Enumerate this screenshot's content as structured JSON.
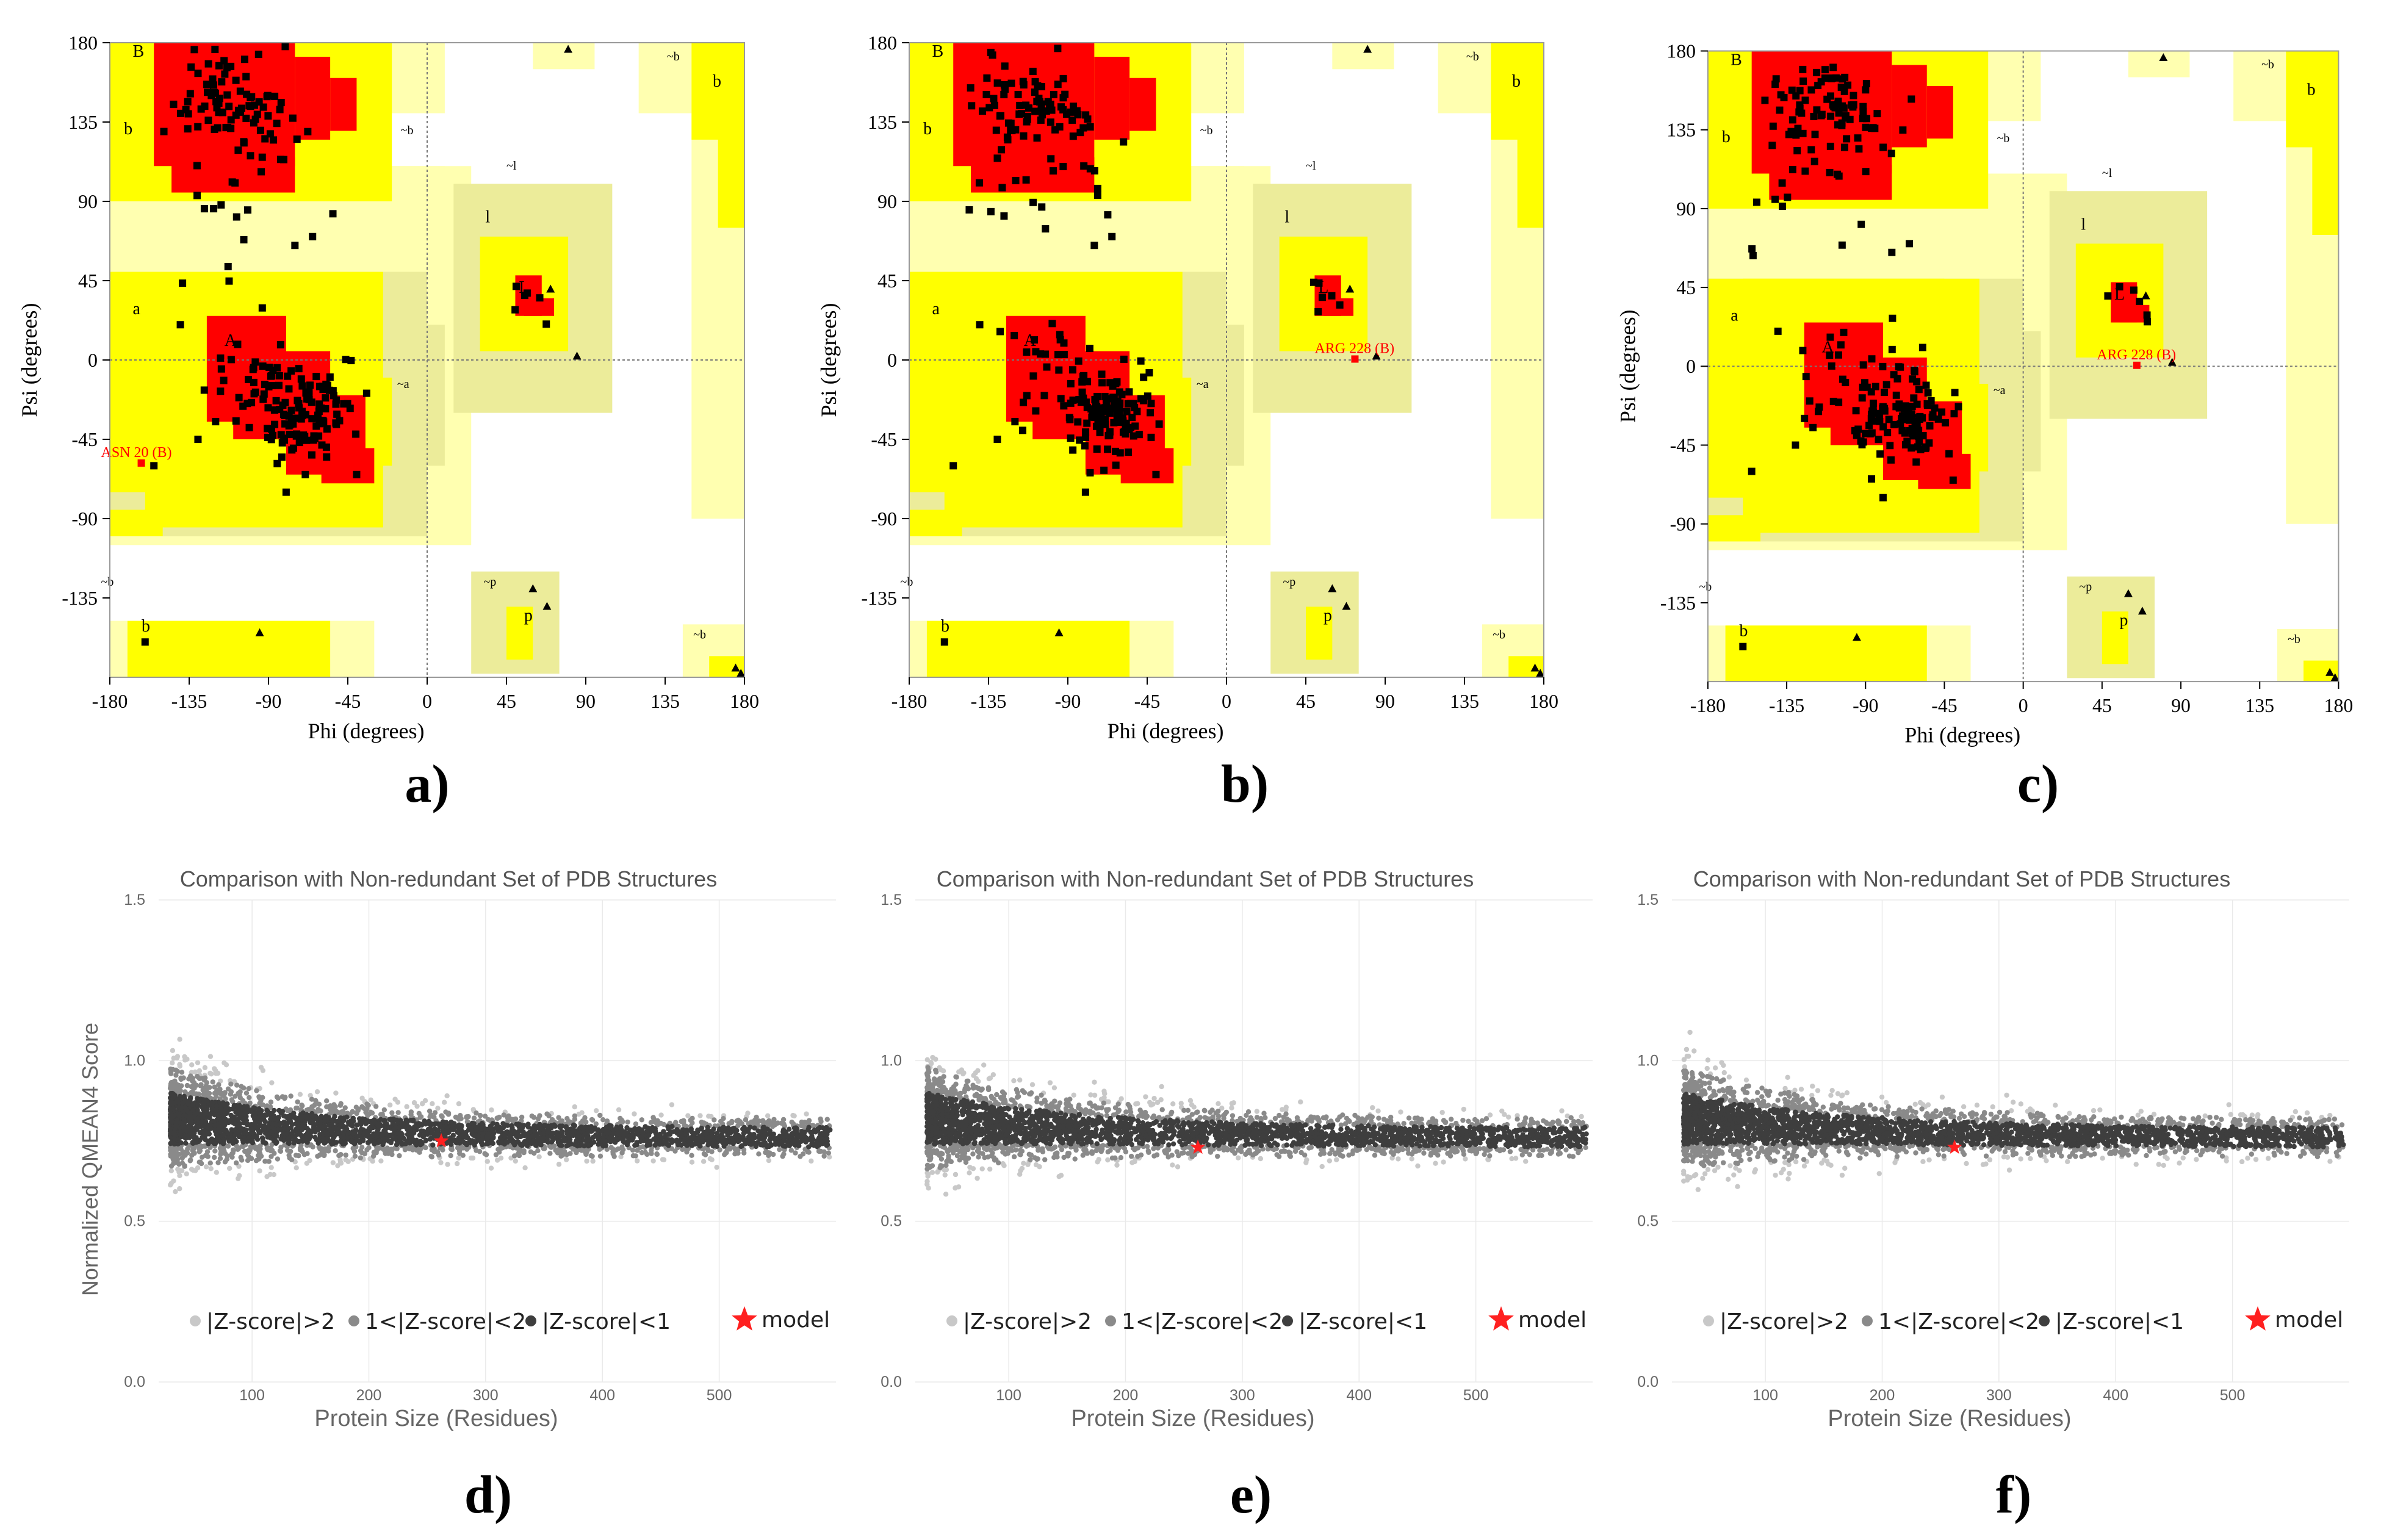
{
  "figure_labels": [
    "a)",
    "b)",
    "c)",
    "d)",
    "e)",
    "f)"
  ],
  "colors": {
    "core": "#ff0000",
    "allowed": "#ffff00",
    "generous_a": "#ecec9a",
    "generous_b": "#ffffb0",
    "residue": "#000000",
    "outlier": "#ff0000",
    "qmean_dark": "#3e3e3e",
    "qmean_mid": "#8a8a8a",
    "qmean_light": "#c8c8c8",
    "model_star": "#ff2020"
  },
  "chart_data": [
    {
      "id": "a",
      "type": "scatter",
      "title": "",
      "xlabel": "Phi (degrees)",
      "ylabel": "Psi (degrees)",
      "xlim": [
        -180,
        180
      ],
      "ylim": [
        -180,
        180
      ],
      "xticks": [
        -180,
        -135,
        -90,
        -45,
        0,
        45,
        90,
        135,
        180
      ],
      "yticks": [
        180,
        135,
        90,
        45,
        0,
        -45,
        -90,
        -135
      ],
      "region_labels": [
        {
          "text": "B",
          "phi": -167,
          "psi": 172
        },
        {
          "text": "b",
          "phi": -172,
          "psi": 128
        },
        {
          "text": "~b",
          "phi": -15,
          "psi": 128
        },
        {
          "text": "a",
          "phi": -167,
          "psi": 26
        },
        {
          "text": "A",
          "phi": -115,
          "psi": 8
        },
        {
          "text": "~a",
          "phi": -17,
          "psi": -16
        },
        {
          "text": "~l",
          "phi": 45,
          "psi": 108
        },
        {
          "text": "l",
          "phi": 33,
          "psi": 78
        },
        {
          "text": "L",
          "phi": 52,
          "psi": 38
        },
        {
          "text": "~b",
          "phi": -185,
          "psi": -128
        },
        {
          "text": "b",
          "phi": -162,
          "psi": -154
        },
        {
          "text": "~p",
          "phi": 32,
          "psi": -128
        },
        {
          "text": "p",
          "phi": 55,
          "psi": -148
        },
        {
          "text": "~b",
          "phi": 151,
          "psi": -158
        },
        {
          "text": "~b",
          "phi": 136,
          "psi": 170
        },
        {
          "text": "b",
          "phi": 162,
          "psi": 155
        }
      ],
      "outlier_labels": [
        {
          "text": "ASN 20 (B)",
          "phi": -185,
          "psi": -55
        }
      ]
    },
    {
      "id": "b",
      "type": "scatter",
      "title": "",
      "xlabel": "Phi (degrees)",
      "ylabel": "Psi (degrees)",
      "xlim": [
        -180,
        180
      ],
      "ylim": [
        -180,
        180
      ],
      "xticks": [
        -180,
        -135,
        -90,
        -45,
        0,
        45,
        90,
        135,
        180
      ],
      "yticks": [
        180,
        135,
        90,
        45,
        0,
        -45,
        -90,
        -135
      ],
      "region_labels": [
        {
          "text": "B",
          "phi": -167,
          "psi": 172
        },
        {
          "text": "b",
          "phi": -172,
          "psi": 128
        },
        {
          "text": "~b",
          "phi": -15,
          "psi": 128
        },
        {
          "text": "a",
          "phi": -167,
          "psi": 26
        },
        {
          "text": "A",
          "phi": -115,
          "psi": 8
        },
        {
          "text": "~a",
          "phi": -17,
          "psi": -16
        },
        {
          "text": "~l",
          "phi": 45,
          "psi": 108
        },
        {
          "text": "l",
          "phi": 33,
          "psi": 78
        },
        {
          "text": "L",
          "phi": 52,
          "psi": 38
        },
        {
          "text": "~b",
          "phi": -185,
          "psi": -128
        },
        {
          "text": "b",
          "phi": -162,
          "psi": -154
        },
        {
          "text": "~p",
          "phi": 32,
          "psi": -128
        },
        {
          "text": "p",
          "phi": 55,
          "psi": -148
        },
        {
          "text": "~b",
          "phi": 151,
          "psi": -158
        },
        {
          "text": "~b",
          "phi": 136,
          "psi": 170
        },
        {
          "text": "b",
          "phi": 162,
          "psi": 155
        }
      ],
      "outlier_labels": [
        {
          "text": "ARG 228 (B)",
          "phi": 50,
          "psi": 4
        }
      ]
    },
    {
      "id": "c",
      "type": "scatter",
      "title": "",
      "xlabel": "Phi (degrees)",
      "ylabel": "Psi (degrees)",
      "xlim": [
        -180,
        180
      ],
      "ylim": [
        -180,
        180
      ],
      "xticks": [
        -180,
        -135,
        -90,
        -45,
        0,
        45,
        90,
        135,
        180
      ],
      "yticks": [
        180,
        135,
        90,
        45,
        0,
        -45,
        -90,
        -135
      ],
      "region_labels": [
        {
          "text": "B",
          "phi": -167,
          "psi": 172
        },
        {
          "text": "b",
          "phi": -172,
          "psi": 128
        },
        {
          "text": "~b",
          "phi": -15,
          "psi": 128
        },
        {
          "text": "a",
          "phi": -167,
          "psi": 26
        },
        {
          "text": "A",
          "phi": -115,
          "psi": 8
        },
        {
          "text": "~a",
          "phi": -17,
          "psi": -16
        },
        {
          "text": "~l",
          "phi": 45,
          "psi": 108
        },
        {
          "text": "l",
          "phi": 33,
          "psi": 78
        },
        {
          "text": "L",
          "phi": 52,
          "psi": 38
        },
        {
          "text": "~b",
          "phi": -185,
          "psi": -128
        },
        {
          "text": "b",
          "phi": -162,
          "psi": -154
        },
        {
          "text": "~p",
          "phi": 32,
          "psi": -128
        },
        {
          "text": "p",
          "phi": 55,
          "psi": -148
        },
        {
          "text": "~b",
          "phi": 151,
          "psi": -158
        },
        {
          "text": "~b",
          "phi": 136,
          "psi": 170
        },
        {
          "text": "b",
          "phi": 162,
          "psi": 155
        }
      ],
      "outlier_labels": [
        {
          "text": "ARG 228 (B)",
          "phi": 42,
          "psi": 4
        }
      ]
    },
    {
      "id": "d",
      "type": "scatter",
      "title": "Comparison with Non-redundant Set of PDB Structures",
      "xlabel": "Protein Size (Residues)",
      "ylabel": "Normalized QMEAN4 Score",
      "xlim": [
        20,
        600
      ],
      "ylim": [
        0.0,
        1.5
      ],
      "xticks": [
        100,
        200,
        300,
        400,
        500
      ],
      "yticks": [
        0.0,
        0.5,
        1.0,
        1.5
      ],
      "ytick_labels": [
        "0.0",
        "0.5",
        "1.0",
        "1.5"
      ],
      "legend": [
        "|Z-score|>2",
        "1<|Z-score|<2",
        "|Z-score|<1",
        "model"
      ],
      "legend_position": "bottom",
      "model": {
        "size": 262,
        "score": 0.75
      }
    },
    {
      "id": "e",
      "type": "scatter",
      "title": "Comparison with Non-redundant Set of PDB Structures",
      "xlabel": "Protein Size (Residues)",
      "ylabel": "",
      "xlim": [
        20,
        600
      ],
      "ylim": [
        0.0,
        1.5
      ],
      "xticks": [
        100,
        200,
        300,
        400,
        500
      ],
      "yticks": [
        0.0,
        0.5,
        1.0,
        1.5
      ],
      "ytick_labels": [
        "0.0",
        "0.5",
        "1.0",
        "1.5"
      ],
      "legend": [
        "|Z-score|>2",
        "1<|Z-score|<2",
        "|Z-score|<1",
        "model"
      ],
      "legend_position": "bottom",
      "model": {
        "size": 262,
        "score": 0.73
      }
    },
    {
      "id": "f",
      "type": "scatter",
      "title": "Comparison with Non-redundant Set of PDB Structures",
      "xlabel": "Protein Size (Residues)",
      "ylabel": "",
      "xlim": [
        20,
        600
      ],
      "ylim": [
        0.0,
        1.5
      ],
      "xticks": [
        100,
        200,
        300,
        400,
        500
      ],
      "yticks": [
        0.0,
        0.5,
        1.0,
        1.5
      ],
      "ytick_labels": [
        "0.0",
        "0.5",
        "1.0",
        "1.5"
      ],
      "legend": [
        "|Z-score|>2",
        "1<|Z-score|<2",
        "|Z-score|<1",
        "model"
      ],
      "legend_position": "bottom",
      "model": {
        "size": 262,
        "score": 0.73
      }
    }
  ]
}
